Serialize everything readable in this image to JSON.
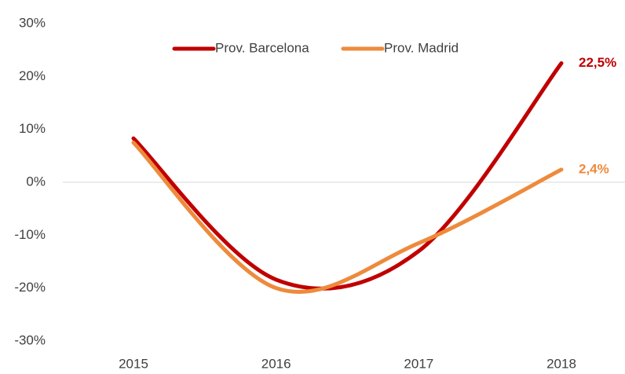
{
  "chart_data": {
    "type": "line",
    "categories": [
      "2015",
      "2016",
      "2017",
      "2018"
    ],
    "series": [
      {
        "name": "Prov. Barcelona",
        "color": "#c00000",
        "values": [
          8.3,
          -18.4,
          -13,
          22.5
        ],
        "value_labels": [
          null,
          null,
          null,
          "22,5%"
        ]
      },
      {
        "name": "Prov. Madrid",
        "color": "#ee8a3c",
        "values": [
          7.5,
          -20,
          -11.5,
          2.4
        ],
        "value_labels": [
          null,
          null,
          null,
          "2,4%"
        ]
      }
    ],
    "ylim": [
      -30,
      30
    ],
    "yticks": [
      {
        "value": -30,
        "label": "-30%"
      },
      {
        "value": -20,
        "label": "-20%"
      },
      {
        "value": -10,
        "label": "-10%"
      },
      {
        "value": 0,
        "label": "0%"
      },
      {
        "value": 10,
        "label": "10%"
      },
      {
        "value": 20,
        "label": "20%"
      },
      {
        "value": 30,
        "label": "30%"
      }
    ],
    "smooth": true,
    "legend": "top"
  }
}
